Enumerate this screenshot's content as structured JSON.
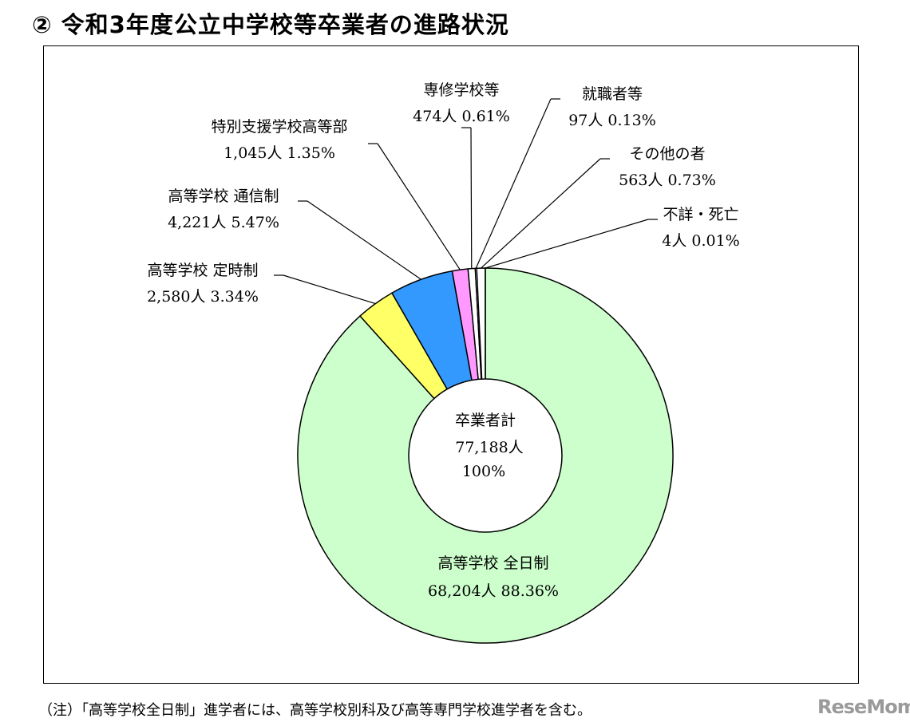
{
  "title": "② 令和3年度公立中学校等卒業者の進路状況",
  "note": "（注）「高等学校全日制」進学者には、高等学校別科及び高等専門学校進学者を含む。",
  "logo": "ReseMom",
  "chart_data": {
    "type": "pie",
    "variant": "donut",
    "center": {
      "label": "卒業者計",
      "count": "77,188人",
      "percent": "100%"
    },
    "total": 77188,
    "slices": [
      {
        "label": "高等学校 全日制",
        "count": 68204,
        "count_text": "68,204人",
        "percent": 88.36,
        "percent_text": "88.36%",
        "color": "#ccffcc"
      },
      {
        "label": "高等学校 定時制",
        "count": 2580,
        "count_text": "2,580人",
        "percent": 3.34,
        "percent_text": "3.34%",
        "color": "#ffff66"
      },
      {
        "label": "高等学校 通信制",
        "count": 4221,
        "count_text": "4,221人",
        "percent": 5.47,
        "percent_text": "5.47%",
        "color": "#3399ff"
      },
      {
        "label": "特別支援学校高等部",
        "count": 1045,
        "count_text": "1,045人",
        "percent": 1.35,
        "percent_text": "1.35%",
        "color": "#ff99ff"
      },
      {
        "label": "専修学校等",
        "count": 474,
        "count_text": "474人",
        "percent": 0.61,
        "percent_text": "0.61%",
        "color": "#ffffff"
      },
      {
        "label": "就職者等",
        "count": 97,
        "count_text": "97人",
        "percent": 0.13,
        "percent_text": "0.13%",
        "color": "#ffffff"
      },
      {
        "label": "その他の者",
        "count": 563,
        "count_text": "563人",
        "percent": 0.73,
        "percent_text": "0.73%",
        "color": "#ffffff"
      },
      {
        "label": "不詳・死亡",
        "count": 4,
        "count_text": "4人",
        "percent": 0.01,
        "percent_text": "0.01%",
        "color": "#ffffff"
      }
    ]
  }
}
